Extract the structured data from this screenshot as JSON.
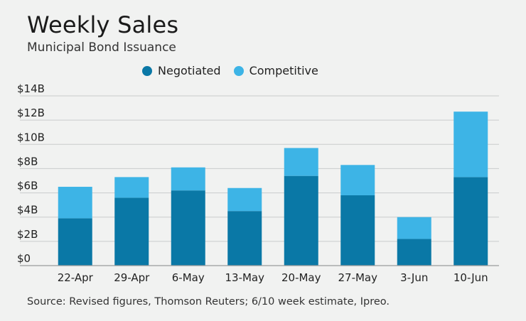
{
  "header": {
    "title": "Weekly Sales",
    "subtitle": "Municipal Bond Issuance"
  },
  "footer": {
    "source": "Source: Revised figures, Thomson Reuters; 6/10 week estimate, Ipreo."
  },
  "colors": {
    "negotiated": "#0a78a6",
    "competitive": "#3db4e6",
    "grid": "#c9cccc",
    "axis": "#9a9d9d"
  },
  "chart_data": {
    "type": "bar",
    "stacked": true,
    "title": "Weekly Sales",
    "subtitle": "Municipal Bond Issuance",
    "xlabel": "",
    "ylabel": "",
    "ylim": [
      0,
      14
    ],
    "yticks": [
      0,
      2,
      4,
      6,
      8,
      10,
      12,
      14
    ],
    "ytick_labels": [
      "$0",
      "$2B",
      "$4B",
      "$6B",
      "$8B",
      "$10B",
      "$12B",
      "$14B"
    ],
    "grid": true,
    "legend_position": "top",
    "categories": [
      "22-Apr",
      "29-Apr",
      "6-May",
      "13-May",
      "20-May",
      "27-May",
      "3-Jun",
      "10-Jun"
    ],
    "series": [
      {
        "name": "Negotiated",
        "color": "#0a78a6",
        "values": [
          3.9,
          5.6,
          6.2,
          4.5,
          7.4,
          5.8,
          2.2,
          7.3
        ]
      },
      {
        "name": "Competitive",
        "color": "#3db4e6",
        "values": [
          2.6,
          1.7,
          1.9,
          1.9,
          2.3,
          2.5,
          1.8,
          5.4
        ]
      }
    ]
  }
}
